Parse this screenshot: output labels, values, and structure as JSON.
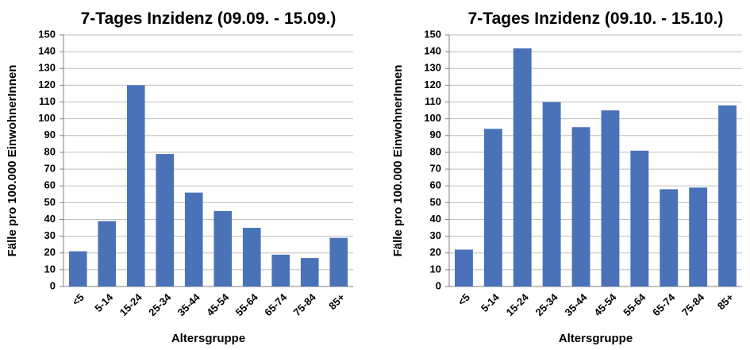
{
  "chart_data": [
    {
      "type": "bar",
      "title": "7-Tages Inzidenz (09.09. - 15.09.)",
      "x_label": "Altersgruppe",
      "y_label": "Fälle pro 100.000 EinwohnerInnen",
      "categories": [
        "<5",
        "5-14",
        "15-24",
        "25-34",
        "35-44",
        "45-54",
        "55-64",
        "65-74",
        "75-84",
        "85+"
      ],
      "values": [
        21,
        39,
        120,
        79,
        56,
        45,
        35,
        19,
        17,
        29
      ],
      "color": "#4a72b8",
      "ylim": [
        0,
        150
      ],
      "yticks": [
        0,
        10,
        20,
        30,
        40,
        50,
        60,
        70,
        80,
        90,
        100,
        110,
        120,
        130,
        140,
        150
      ],
      "grid": true
    },
    {
      "type": "bar",
      "title": "7-Tages Inzidenz (09.10. - 15.10.)",
      "x_label": "Altersgruppe",
      "y_label": "Fälle pro 100.000 EinwohnerInnen",
      "categories": [
        "<5",
        "5-14",
        "15-24",
        "25-34",
        "35-44",
        "45-54",
        "55-64",
        "65-74",
        "75-84",
        "85+"
      ],
      "values": [
        22,
        94,
        142,
        110,
        95,
        105,
        81,
        58,
        59,
        108
      ],
      "color": "#4a72b8",
      "ylim": [
        0,
        150
      ],
      "yticks": [
        0,
        10,
        20,
        30,
        40,
        50,
        60,
        70,
        80,
        90,
        100,
        110,
        120,
        130,
        140,
        150
      ],
      "grid": true
    }
  ]
}
